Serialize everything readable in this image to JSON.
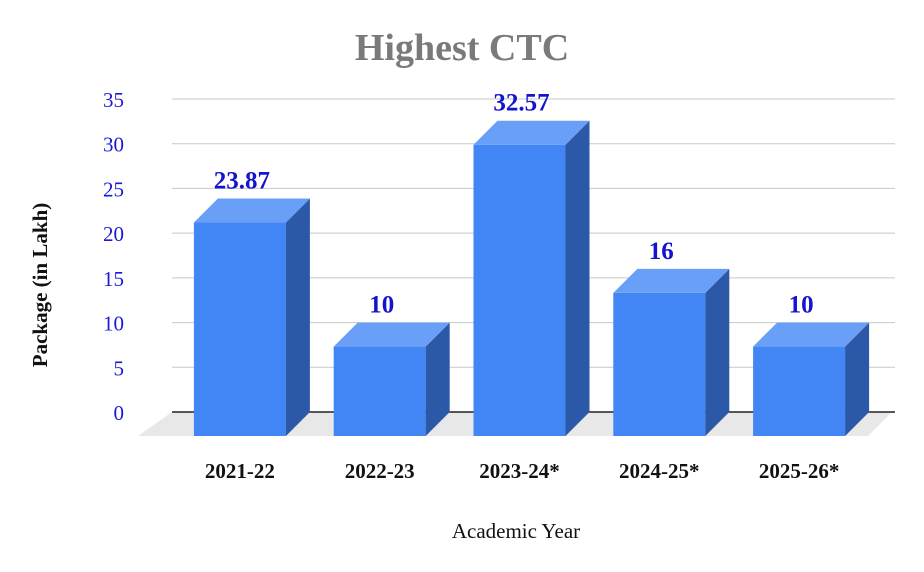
{
  "chart_data": {
    "type": "bar",
    "title": "Highest CTC",
    "xlabel": "Academic Year",
    "ylabel": "Package (in Lakh)",
    "categories": [
      "2021-22",
      "2022-23",
      "2023-24*",
      "2024-25*",
      "2025-26*"
    ],
    "values": [
      23.87,
      10,
      32.57,
      16,
      10
    ],
    "value_labels": [
      "23.87",
      "10",
      "32.57",
      "16",
      "10"
    ],
    "ylim": [
      0,
      35
    ],
    "yticks": [
      "0",
      "5",
      "10",
      "15",
      "20",
      "25",
      "30",
      "35"
    ],
    "grid": true,
    "style": "3d-column",
    "colors": {
      "bar_front": "#4285f4",
      "bar_top": "#6a9ff7",
      "bar_side": "#2c58a8",
      "floor": "#e8e8e8",
      "gridline": "#c8c8c8",
      "data_label": "#1414d0",
      "tick_label": "#1a1ad6",
      "title": "#7a7a7a"
    }
  }
}
